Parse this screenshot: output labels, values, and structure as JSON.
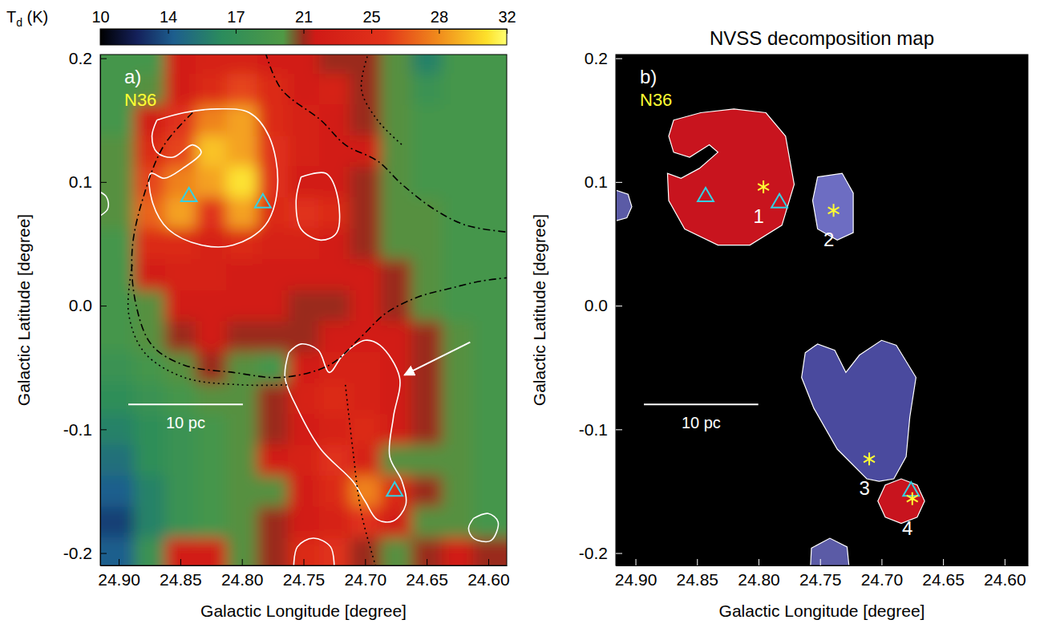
{
  "chart_data": [
    {
      "type": "heatmap",
      "panel_label": "a)",
      "annotation": "N36",
      "xlabel": "Galactic Longitude [degree]",
      "ylabel": "Galactic Latitude [degree]",
      "xlim": [
        24.915,
        24.585
      ],
      "ylim": [
        -0.21,
        0.203
      ],
      "xticks": [
        {
          "value": 24.9,
          "label": "24.90"
        },
        24.85,
        {
          "value": 24.8,
          "label": "24.80"
        },
        24.75,
        {
          "value": 24.7,
          "label": "24.70"
        },
        24.65,
        {
          "value": 24.6,
          "label": "24.60"
        }
      ],
      "yticks": [
        -0.2,
        -0.1,
        {
          "value": 0,
          "label": "0.0"
        },
        0.1,
        0.2
      ],
      "x": [
        24.9,
        24.875,
        24.85,
        24.825,
        24.8,
        24.775,
        24.75,
        24.725,
        24.7,
        24.675,
        24.65,
        24.625,
        24.6
      ],
      "y": [
        0.2,
        0.175,
        0.15,
        0.125,
        0.1,
        0.075,
        0.05,
        0.025,
        0.0,
        -0.025,
        -0.05,
        -0.075,
        -0.1,
        -0.125,
        -0.15,
        -0.175,
        -0.2
      ],
      "values": [
        [
          19,
          19,
          22,
          23,
          23,
          22,
          22,
          21,
          21,
          20,
          16,
          19,
          19
        ],
        [
          19,
          20,
          22,
          24,
          26,
          24,
          22,
          23,
          21,
          20,
          18,
          19,
          19
        ],
        [
          19,
          22,
          25,
          28,
          29,
          24,
          23,
          22,
          21,
          20,
          19,
          19,
          19
        ],
        [
          20,
          24,
          26,
          30,
          29,
          25,
          23,
          22,
          22,
          20,
          19,
          19,
          19
        ],
        [
          20,
          26,
          28,
          29,
          31,
          25,
          22,
          22,
          21,
          20,
          19,
          19,
          19
        ],
        [
          20,
          27,
          29,
          25,
          29,
          24,
          25,
          24,
          21,
          20,
          20,
          19,
          19
        ],
        [
          19,
          24,
          24,
          23,
          24,
          23,
          23,
          22,
          21,
          20,
          20,
          19,
          19
        ],
        [
          19,
          22,
          23,
          23,
          22,
          22,
          22,
          22,
          22,
          21,
          20,
          19,
          19
        ],
        [
          19,
          20,
          22,
          22,
          22,
          22,
          21,
          21,
          22,
          21,
          20,
          19,
          19
        ],
        [
          19,
          20,
          21,
          22,
          21,
          21,
          21,
          22,
          22,
          22,
          21,
          20,
          19
        ],
        [
          18,
          19,
          20,
          21,
          20,
          19,
          22,
          23,
          23,
          22,
          21,
          20,
          19
        ],
        [
          17,
          18,
          19,
          20,
          20,
          21,
          23,
          24,
          23,
          22,
          21,
          20,
          19
        ],
        [
          16,
          17,
          18,
          19,
          20,
          21,
          22,
          23,
          24,
          22,
          21,
          20,
          19
        ],
        [
          15,
          17,
          18,
          19,
          20,
          22,
          23,
          25,
          23,
          20,
          20,
          20,
          19
        ],
        [
          14,
          16,
          18,
          19,
          20,
          20,
          22,
          24,
          28,
          24,
          21,
          20,
          19
        ],
        [
          13,
          16,
          18,
          19,
          20,
          21,
          22,
          23,
          25,
          22,
          20,
          20,
          19
        ],
        [
          14,
          18,
          22,
          22,
          20,
          21,
          24,
          25,
          21,
          20,
          21,
          22,
          21
        ]
      ],
      "colorbar": {
        "label": "Td (K)",
        "range": [
          10,
          32
        ],
        "ticks": [
          10,
          {
            "value": 13.67,
            "label": "14"
          },
          {
            "value": 17.33,
            "label": "17"
          },
          21,
          {
            "value": 24.67,
            "label": "25"
          },
          {
            "value": 28.33,
            "label": "28"
          },
          32
        ]
      },
      "contours": [
        {
          "color": "white",
          "line_style": "solid",
          "l": [
            24.869,
            24.847,
            24.82,
            24.794,
            24.778,
            24.771,
            24.781,
            24.807,
            24.833,
            24.86,
            24.873,
            24.874,
            24.863,
            24.848,
            24.833,
            24.84,
            24.856,
            24.869,
            24.873,
            24.869
          ],
          "b": [
            0.15,
            0.156,
            0.159,
            0.156,
            0.137,
            0.098,
            0.065,
            0.049,
            0.049,
            0.062,
            0.085,
            0.107,
            0.103,
            0.111,
            0.124,
            0.13,
            0.12,
            0.124,
            0.137,
            0.15
          ]
        },
        {
          "color": "white",
          "line_style": "solid",
          "l": [
            24.752,
            24.732,
            24.723,
            24.723,
            24.736,
            24.752,
            24.756,
            24.752
          ],
          "b": [
            0.104,
            0.107,
            0.091,
            0.059,
            0.053,
            0.062,
            0.085,
            0.104
          ]
        },
        {
          "color": "white",
          "line_style": "solid",
          "l": [
            24.762,
            24.752,
            24.738,
            24.729,
            24.718,
            24.7,
            24.688,
            24.672,
            24.677,
            24.68,
            24.67,
            24.667,
            24.677,
            24.69,
            24.7,
            24.71,
            24.736,
            24.755,
            24.765,
            24.762
          ],
          "b": [
            -0.038,
            -0.031,
            -0.036,
            -0.054,
            -0.04,
            -0.028,
            -0.032,
            -0.058,
            -0.09,
            -0.122,
            -0.142,
            -0.161,
            -0.174,
            -0.173,
            -0.158,
            -0.142,
            -0.116,
            -0.083,
            -0.058,
            -0.038
          ]
        },
        {
          "color": "white",
          "line_style": "solid",
          "l": [
            24.758,
            24.755,
            24.742,
            24.728,
            24.725
          ],
          "b": [
            -0.215,
            -0.195,
            -0.188,
            -0.195,
            -0.215
          ]
        },
        {
          "color": "white",
          "line_style": "solid",
          "l": [
            24.612,
            24.6,
            24.592,
            24.598,
            24.612,
            24.616,
            24.612
          ],
          "b": [
            -0.172,
            -0.168,
            -0.175,
            -0.19,
            -0.188,
            -0.18,
            -0.172
          ]
        },
        {
          "color": "white",
          "line_style": "solid",
          "l": [
            24.92,
            24.91,
            24.909,
            24.92
          ],
          "b": [
            0.094,
            0.088,
            0.078,
            0.07
          ]
        },
        {
          "color": "black",
          "line_style": "dashdot",
          "l": [
            24.84,
            24.863,
            24.879,
            24.889,
            24.886,
            24.873,
            24.847,
            24.807,
            24.768,
            24.729,
            24.703,
            24.683,
            24.657,
            24.631,
            24.605,
            24.58
          ],
          "b": [
            0.156,
            0.13,
            0.091,
            0.046,
            0.001,
            -0.032,
            -0.048,
            -0.054,
            -0.058,
            -0.048,
            -0.025,
            -0.006,
            0.007,
            0.014,
            0.02,
            0.023
          ]
        },
        {
          "color": "black",
          "line_style": "dashdot",
          "l": [
            24.781,
            24.768,
            24.736,
            24.716,
            24.69,
            24.67,
            24.644,
            24.618,
            24.58
          ],
          "b": [
            0.205,
            0.175,
            0.15,
            0.13,
            0.117,
            0.098,
            0.078,
            0.065,
            0.059
          ]
        },
        {
          "color": "black",
          "line_style": "dotted",
          "l": [
            24.889,
            24.892,
            24.879,
            24.847,
            24.801,
            24.762
          ],
          "b": [
            0.033,
            -0.006,
            -0.038,
            -0.058,
            -0.064,
            -0.064
          ]
        },
        {
          "color": "black",
          "line_style": "dotted",
          "l": [
            24.716,
            24.71,
            24.703,
            24.69
          ],
          "b": [
            -0.064,
            -0.116,
            -0.168,
            -0.215
          ]
        },
        {
          "color": "black",
          "line_style": "dotted",
          "l": [
            24.697,
            24.703,
            24.69,
            24.67
          ],
          "b": [
            0.205,
            0.175,
            0.15,
            0.13
          ]
        }
      ],
      "sources": {
        "marker": "triangle",
        "color": "#35d0e2",
        "l": [
          24.843,
          24.783,
          24.676
        ],
        "b": [
          0.088,
          0.083,
          -0.15
        ]
      },
      "scale_bar": {
        "label": "10 pc",
        "length": 0.093
      }
    },
    {
      "type": "map",
      "title": "NVSS decomposition map",
      "panel_label": "b)",
      "annotation": "N36",
      "xlabel": "Galactic Longitude [degree]",
      "ylabel": "Galactic Latitude [degree]",
      "xlim": [
        24.916,
        24.581
      ],
      "ylim": [
        -0.21,
        0.203
      ],
      "xticks": [
        {
          "value": 24.9,
          "label": "24.90"
        },
        24.85,
        {
          "value": 24.8,
          "label": "24.80"
        },
        24.75,
        {
          "value": 24.7,
          "label": "24.70"
        },
        24.65,
        {
          "value": 24.6,
          "label": "24.60"
        }
      ],
      "yticks": [
        -0.2,
        -0.1,
        {
          "value": 0,
          "label": "0.0"
        },
        0.1,
        0.2
      ],
      "regions": [
        {
          "label": "1",
          "color": "#c8141e",
          "l": [
            24.869,
            24.847,
            24.82,
            24.794,
            24.778,
            24.771,
            24.781,
            24.807,
            24.833,
            24.86,
            24.873,
            24.874,
            24.863,
            24.848,
            24.833,
            24.84,
            24.856,
            24.869,
            24.873
          ],
          "b": [
            0.15,
            0.156,
            0.159,
            0.156,
            0.137,
            0.098,
            0.065,
            0.049,
            0.049,
            0.062,
            0.085,
            0.107,
            0.103,
            0.111,
            0.124,
            0.13,
            0.12,
            0.124,
            0.137
          ],
          "peak": {
            "marker": "asterisk",
            "color": "#ffff33",
            "l": 24.796,
            "b": 0.096
          }
        },
        {
          "label": "2",
          "color": "#6d6dc2",
          "l": [
            24.752,
            24.732,
            24.723,
            24.723,
            24.736,
            24.752,
            24.756
          ],
          "b": [
            0.104,
            0.107,
            0.091,
            0.059,
            0.053,
            0.062,
            0.085
          ],
          "peak": {
            "marker": "asterisk",
            "color": "#ffff33",
            "l": 24.739,
            "b": 0.077
          }
        },
        {
          "label": "3",
          "color": "#4a4a9e",
          "l": [
            24.762,
            24.752,
            24.738,
            24.729,
            24.718,
            24.7,
            24.688,
            24.672,
            24.677,
            24.68,
            24.69,
            24.702,
            24.712,
            24.736,
            24.755,
            24.765
          ],
          "b": [
            -0.038,
            -0.031,
            -0.036,
            -0.054,
            -0.04,
            -0.028,
            -0.032,
            -0.058,
            -0.09,
            -0.122,
            -0.14,
            -0.142,
            -0.14,
            -0.116,
            -0.083,
            -0.058
          ],
          "peak": {
            "marker": "asterisk",
            "color": "#ffff33",
            "l": 24.71,
            "b": -0.124
          }
        },
        {
          "label": "4",
          "color": "#c8141e",
          "l": [
            24.703,
            24.697,
            24.684,
            24.671,
            24.665,
            24.671,
            24.684,
            24.697
          ],
          "b": [
            -0.158,
            -0.145,
            -0.14,
            -0.145,
            -0.158,
            -0.171,
            -0.176,
            -0.171
          ],
          "peak": {
            "marker": "asterisk",
            "color": "#ffff33",
            "l": 24.675,
            "b": -0.156
          }
        },
        {
          "color": "#5b5ba6",
          "l": [
            24.918,
            24.906,
            24.903,
            24.907,
            24.918
          ],
          "b": [
            0.094,
            0.09,
            0.08,
            0.071,
            0.068
          ]
        },
        {
          "color": "#5b5ba6",
          "l": [
            24.758,
            24.757,
            24.742,
            24.728,
            24.726
          ],
          "b": [
            -0.215,
            -0.196,
            -0.188,
            -0.195,
            -0.215
          ]
        }
      ],
      "sources": {
        "marker": "triangle",
        "color": "#35d0e2",
        "l": [
          24.843,
          24.783,
          24.676
        ],
        "b": [
          0.088,
          0.083,
          -0.15
        ]
      },
      "scale_bar": {
        "label": "10 pc",
        "length": 0.093
      }
    }
  ]
}
